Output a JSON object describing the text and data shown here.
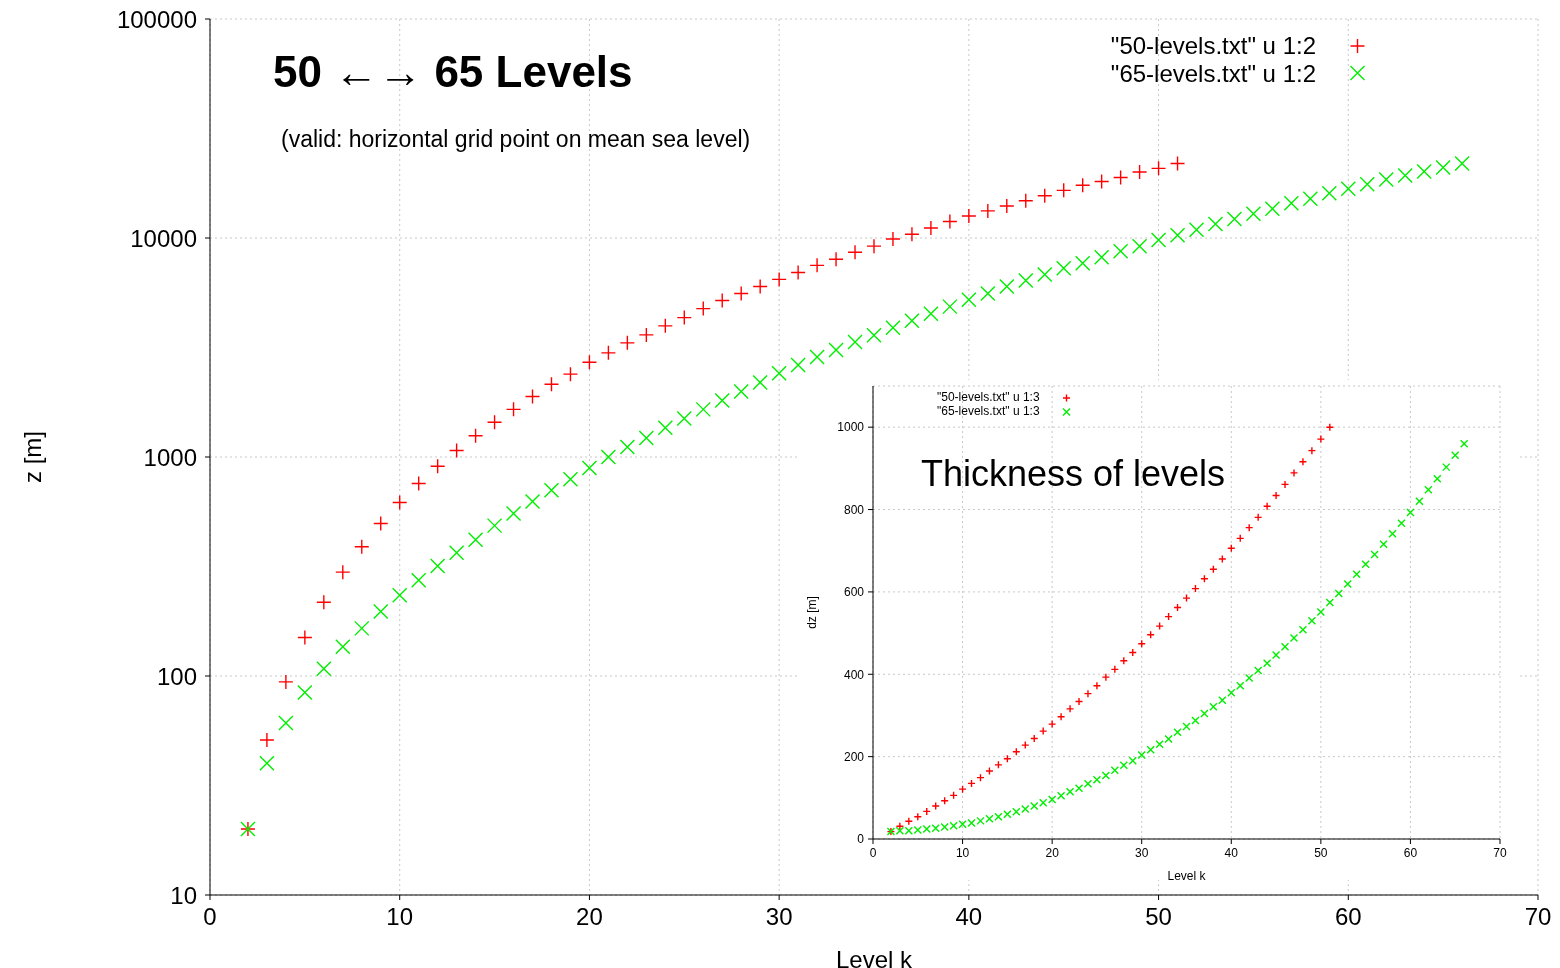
{
  "chart_data": [
    {
      "type": "scatter",
      "title": "50 ←→ 65 Levels",
      "subtitle": "(valid: horizontal grid point on mean sea level)",
      "xlabel": "Level k",
      "ylabel": "z [m]",
      "xlim": [
        0,
        70
      ],
      "xticks": [
        0,
        10,
        20,
        30,
        40,
        50,
        60,
        70
      ],
      "ylim": [
        10,
        100000
      ],
      "yticks": [
        10,
        100,
        1000,
        10000,
        100000
      ],
      "log": "y",
      "grid": true,
      "legend": "top right",
      "series": [
        {
          "name": "\"50-levels.txt\" u 1:2",
          "color": "#ff0000",
          "marker": "plus",
          "x": [
            2,
            3,
            4,
            5,
            6,
            7,
            8,
            9,
            10,
            11,
            12,
            13,
            14,
            15,
            16,
            17,
            18,
            19,
            20,
            21,
            22,
            23,
            24,
            25,
            26,
            27,
            28,
            29,
            30,
            31,
            32,
            33,
            34,
            35,
            36,
            37,
            38,
            39,
            40,
            41,
            42,
            43,
            44,
            45,
            46,
            47,
            48,
            49,
            50,
            51
          ],
          "values": [
            20,
            51,
            94,
            150,
            217,
            298,
            389,
            497,
            620,
            757,
            907,
            1070,
            1250,
            1440,
            1650,
            1890,
            2150,
            2390,
            2710,
            2990,
            3320,
            3610,
            3970,
            4330,
            4760,
            5180,
            5580,
            6010,
            6470,
            6960,
            7500,
            8000,
            8610,
            9180,
            9890,
            10400,
            11100,
            11900,
            12600,
            13300,
            14000,
            14800,
            15600,
            16500,
            17400,
            18100,
            18900,
            20000,
            20800,
            21900
          ]
        },
        {
          "name": "\"65-levels.txt\" u 1:2",
          "color": "#00ee00",
          "marker": "cross",
          "x": [
            2,
            3,
            4,
            5,
            6,
            7,
            8,
            9,
            10,
            11,
            12,
            13,
            14,
            15,
            16,
            17,
            18,
            19,
            20,
            21,
            22,
            23,
            24,
            25,
            26,
            27,
            28,
            29,
            30,
            31,
            32,
            33,
            34,
            35,
            36,
            37,
            38,
            39,
            40,
            41,
            42,
            43,
            44,
            45,
            46,
            47,
            48,
            49,
            50,
            51,
            52,
            53,
            54,
            55,
            56,
            57,
            58,
            59,
            60,
            61,
            62,
            63,
            64,
            65,
            66
          ],
          "values": [
            20,
            40,
            61,
            84,
            108,
            136,
            165,
            197,
            234,
            274,
            318,
            365,
            419,
            486,
            552,
            627,
            705,
            792,
            890,
            1000,
            1110,
            1220,
            1360,
            1500,
            1650,
            1810,
            1990,
            2190,
            2410,
            2630,
            2860,
            3080,
            3350,
            3600,
            3890,
            4190,
            4510,
            4860,
            5230,
            5580,
            6010,
            6400,
            6820,
            7280,
            7670,
            8170,
            8710,
            9180,
            9790,
            10300,
            10900,
            11600,
            12200,
            12900,
            13600,
            14400,
            15100,
            16000,
            16800,
            17600,
            18500,
            19300,
            20100,
            21000,
            21900
          ]
        }
      ]
    },
    {
      "type": "scatter",
      "title": "Thickness of levels",
      "xlabel": "Level k",
      "ylabel": "dz [m]",
      "xlim": [
        0,
        70
      ],
      "xticks": [
        0,
        10,
        20,
        30,
        40,
        50,
        60,
        70
      ],
      "ylim": [
        0,
        1100
      ],
      "yticks": [
        0,
        200,
        400,
        600,
        800,
        1000
      ],
      "grid": true,
      "legend": "top left",
      "series": [
        {
          "name": "\"50-levels.txt\" u 1:3",
          "color": "#ff0000",
          "marker": "plus",
          "x": [
            2,
            3,
            4,
            5,
            6,
            7,
            8,
            9,
            10,
            11,
            12,
            13,
            14,
            15,
            16,
            17,
            18,
            19,
            20,
            21,
            22,
            23,
            24,
            25,
            26,
            27,
            28,
            29,
            30,
            31,
            32,
            33,
            34,
            35,
            36,
            37,
            38,
            39,
            40,
            41,
            42,
            43,
            44,
            45,
            46,
            47,
            48,
            49,
            50,
            51
          ],
          "values": [
            18,
            31,
            43,
            54,
            67,
            80,
            93,
            106,
            121,
            135,
            149,
            165,
            180,
            195,
            212,
            228,
            244,
            262,
            279,
            297,
            316,
            334,
            353,
            372,
            393,
            412,
            433,
            453,
            474,
            496,
            517,
            540,
            562,
            585,
            608,
            632,
            655,
            680,
            706,
            730,
            756,
            781,
            808,
            834,
            861,
            889,
            916,
            943,
            971,
            1000
          ]
        },
        {
          "name": "\"65-levels.txt\" u 1:3",
          "color": "#00ee00",
          "marker": "cross",
          "x": [
            2,
            3,
            4,
            5,
            6,
            7,
            8,
            9,
            10,
            11,
            12,
            13,
            14,
            15,
            16,
            17,
            18,
            19,
            20,
            21,
            22,
            23,
            24,
            25,
            26,
            27,
            28,
            29,
            30,
            31,
            32,
            33,
            34,
            35,
            36,
            37,
            38,
            39,
            40,
            41,
            42,
            43,
            44,
            45,
            46,
            47,
            48,
            49,
            50,
            51,
            52,
            53,
            54,
            55,
            56,
            57,
            58,
            59,
            60,
            61,
            62,
            63,
            64,
            65,
            66
          ],
          "values": [
            18,
            20,
            20,
            22,
            24,
            26,
            29,
            32,
            36,
            39,
            44,
            49,
            54,
            60,
            66,
            73,
            80,
            88,
            96,
            105,
            115,
            123,
            134,
            144,
            154,
            167,
            179,
            190,
            204,
            217,
            230,
            243,
            259,
            273,
            288,
            305,
            321,
            337,
            355,
            372,
            391,
            409,
            427,
            447,
            467,
            488,
            508,
            530,
            551,
            574,
            596,
            619,
            643,
            667,
            691,
            716,
            741,
            767,
            793,
            820,
            848,
            875,
            903,
            932,
            960
          ]
        }
      ]
    }
  ]
}
